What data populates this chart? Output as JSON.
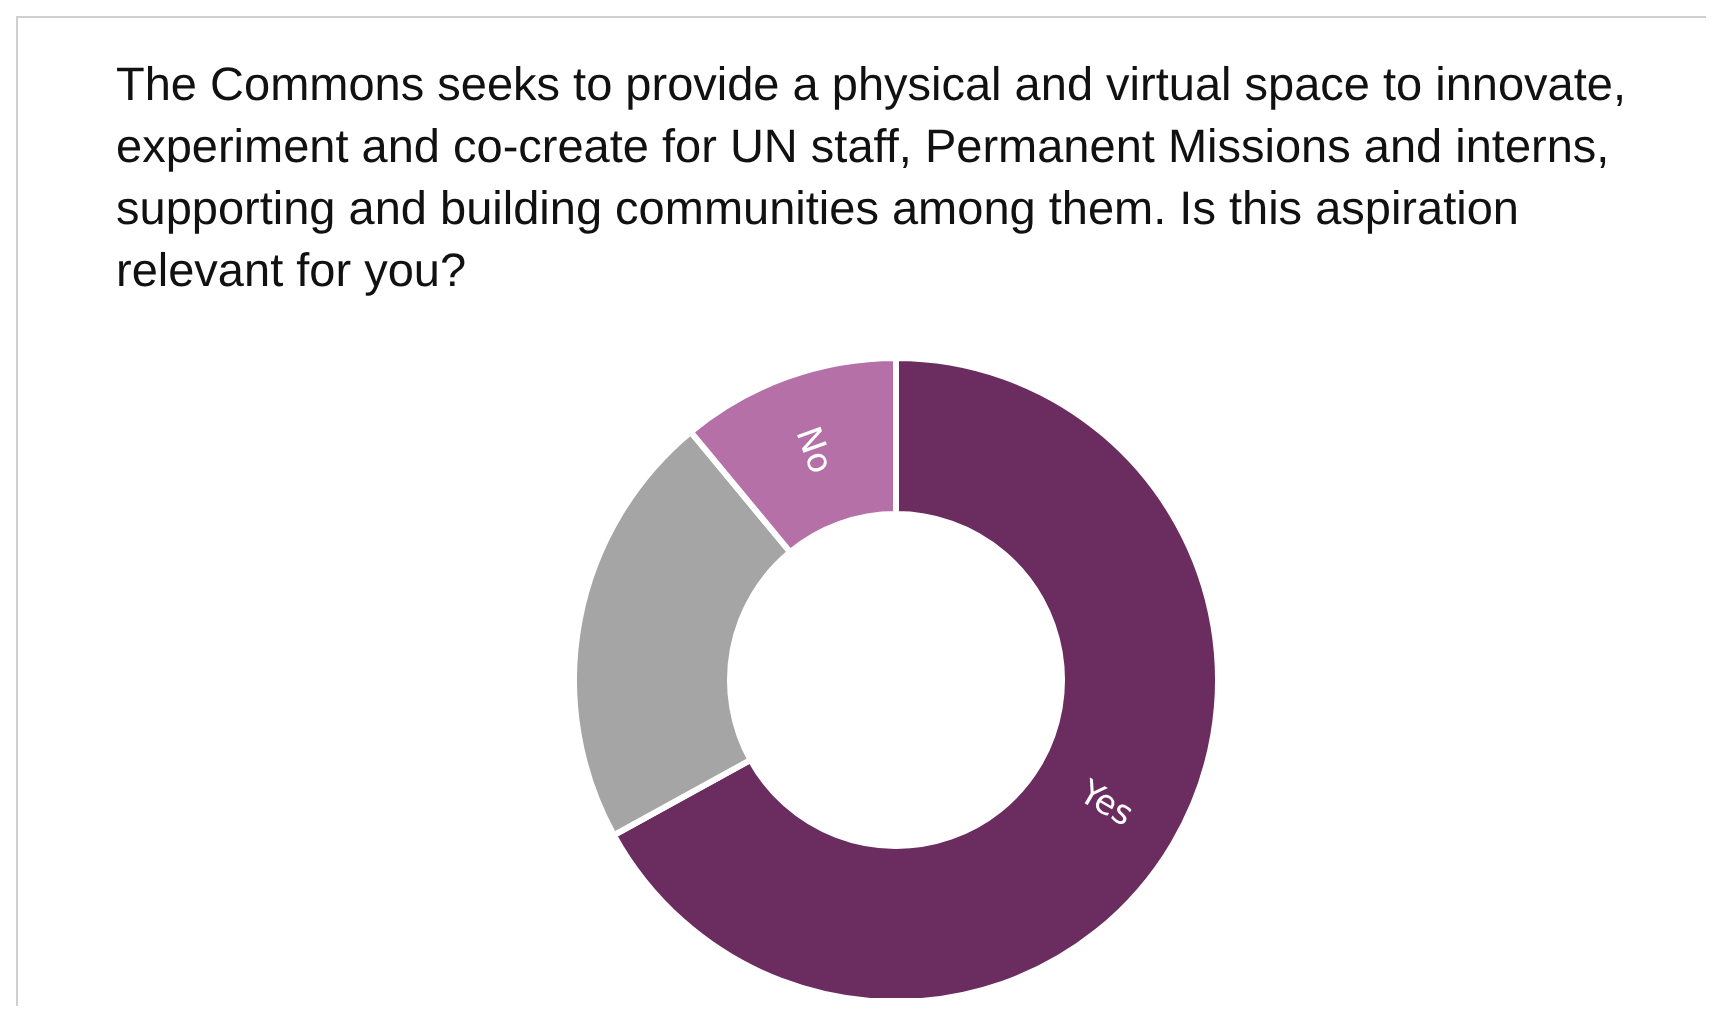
{
  "chart_data": {
    "type": "donut",
    "title": "The Commons seeks to provide a physical and virtual space to innovate, experiment and co-create for UN staff, Permanent Missions and interns, supporting and building communities among them. Is this aspiration relevant for you?",
    "categories": [
      "Yes",
      null,
      "No"
    ],
    "values": [
      67,
      22,
      11
    ],
    "colors": [
      "#6b2c5f",
      "#a5a5a5",
      "#b570a8"
    ],
    "data_labels": false
  }
}
